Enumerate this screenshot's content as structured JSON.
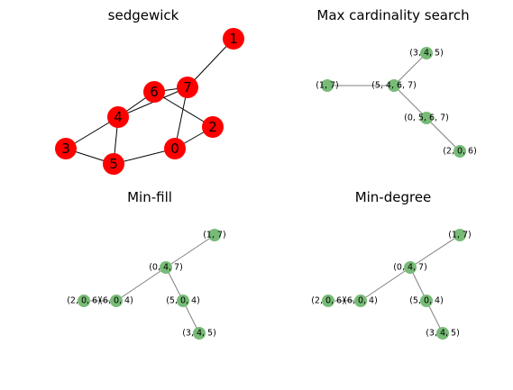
{
  "panels": [
    {
      "title": "sedgewick",
      "nodes": [
        {
          "label": "1"
        },
        {
          "label": "7"
        },
        {
          "label": "6"
        },
        {
          "label": "4"
        },
        {
          "label": "2"
        },
        {
          "label": "3"
        },
        {
          "label": "0"
        },
        {
          "label": "5"
        }
      ],
      "edges": [
        [
          "1",
          "7"
        ],
        [
          "7",
          "6"
        ],
        [
          "7",
          "0"
        ],
        [
          "6",
          "4"
        ],
        [
          "6",
          "2"
        ],
        [
          "4",
          "7"
        ],
        [
          "4",
          "3"
        ],
        [
          "4",
          "5"
        ],
        [
          "3",
          "5"
        ],
        [
          "5",
          "0"
        ],
        [
          "0",
          "2"
        ]
      ],
      "node_color": "#ff0000",
      "edge_color": "#000000"
    },
    {
      "title": "Max cardinality search",
      "nodes": [
        {
          "label": "(3, 4, 5)"
        },
        {
          "label": "(1, 7)"
        },
        {
          "label": "(5, 4, 6, 7)"
        },
        {
          "label": "(0, 5, 6, 7)"
        },
        {
          "label": "(2, 0, 6)"
        }
      ],
      "edges": [
        [
          "(1, 7)",
          "(5, 4, 6, 7)"
        ],
        [
          "(5, 4, 6, 7)",
          "(3, 4, 5)"
        ],
        [
          "(5, 4, 6, 7)",
          "(0, 5, 6, 7)"
        ],
        [
          "(0, 5, 6, 7)",
          "(2, 0, 6)"
        ]
      ],
      "node_color": "#77bb77",
      "edge_color": "#808080"
    },
    {
      "title": "Min-fill",
      "nodes": [
        {
          "label": "(1, 7)"
        },
        {
          "label": "(0, 4, 7)"
        },
        {
          "label": "(2, 0, 6)"
        },
        {
          "label": "(6, 0, 4)"
        },
        {
          "label": "(5, 0, 4)"
        },
        {
          "label": "(3, 4, 5)"
        }
      ],
      "edges": [
        [
          "(1, 7)",
          "(0, 4, 7)"
        ],
        [
          "(0, 4, 7)",
          "(6, 0, 4)"
        ],
        [
          "(0, 4, 7)",
          "(5, 0, 4)"
        ],
        [
          "(6, 0, 4)",
          "(2, 0, 6)"
        ],
        [
          "(5, 0, 4)",
          "(3, 4, 5)"
        ]
      ],
      "node_color": "#77bb77",
      "edge_color": "#808080"
    },
    {
      "title": "Min-degree",
      "nodes": [
        {
          "label": "(1, 7)"
        },
        {
          "label": "(0, 4, 7)"
        },
        {
          "label": "(2, 0, 6)"
        },
        {
          "label": "(6, 0, 4)"
        },
        {
          "label": "(5, 0, 4)"
        },
        {
          "label": "(3, 4, 5)"
        }
      ],
      "edges": [
        [
          "(1, 7)",
          "(0, 4, 7)"
        ],
        [
          "(0, 4, 7)",
          "(6, 0, 4)"
        ],
        [
          "(0, 4, 7)",
          "(5, 0, 4)"
        ],
        [
          "(6, 0, 4)",
          "(2, 0, 6)"
        ],
        [
          "(5, 0, 4)",
          "(3, 4, 5)"
        ]
      ],
      "node_color": "#77bb77",
      "edge_color": "#808080"
    }
  ]
}
